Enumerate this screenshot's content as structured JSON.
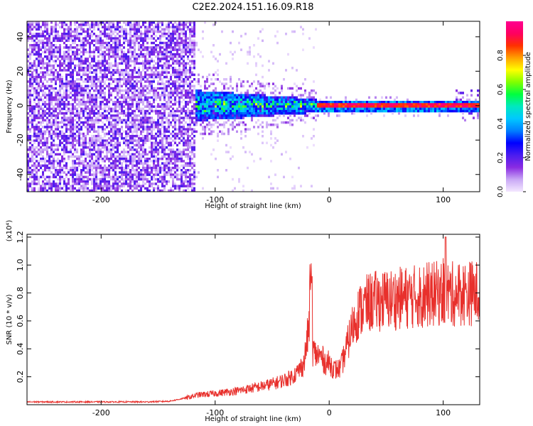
{
  "chart_data": [
    {
      "type": "heatmap",
      "title": "C2E2.2024.151.16.09.R18",
      "xlabel": "Height of straight line (km)",
      "ylabel": "Frequency (Hz)",
      "xlim": [
        -265,
        132
      ],
      "ylim": [
        -50,
        49
      ],
      "xticks": [
        -200,
        -100,
        0,
        100
      ],
      "yticks": [
        -40,
        -20,
        0,
        20,
        40
      ],
      "colorbar": {
        "label": "Normalized spectral amplitude",
        "range": [
          0.0,
          1.0
        ],
        "ticks": [
          0.0,
          0.2,
          0.4,
          0.6,
          0.8
        ],
        "colormap": [
          "#f4e8ff",
          "#c9a8f5",
          "#8a2be2",
          "#4a1cf0",
          "#0000ff",
          "#0080ff",
          "#00c8ff",
          "#00e8c0",
          "#00ff40",
          "#80ff00",
          "#ffff00",
          "#ffa000",
          "#ff3000",
          "#ff0060",
          "#ff0090"
        ]
      },
      "regions": [
        {
          "x_range": [
            -265,
            -118
          ],
          "freq_range": [
            -50,
            49
          ],
          "amplitude": 0.15
        },
        {
          "x_range": [
            -118,
            -10
          ],
          "freq_range": [
            -12,
            12
          ],
          "amplitude": 0.35
        },
        {
          "x_range": [
            -10,
            132
          ],
          "freq_range": [
            -2,
            2
          ],
          "amplitude": 0.9
        }
      ]
    },
    {
      "type": "line",
      "xlabel": "Height of straight line (km)",
      "ylabel": "SNR (10 * v/v)",
      "y_multiplier": "(x10⁴)",
      "xlim": [
        -265,
        132
      ],
      "ylim": [
        0.0,
        1.22
      ],
      "xticks": [
        -200,
        -100,
        0,
        100
      ],
      "yticks": [
        0.2,
        0.4,
        0.6,
        0.8,
        1.0,
        1.2
      ],
      "series": [
        {
          "color": "#e8302c",
          "x": [
            -265,
            -240,
            -200,
            -160,
            -140,
            -125,
            -115,
            -100,
            -80,
            -60,
            -45,
            -35,
            -28,
            -22,
            -18,
            -15,
            -12,
            -8,
            -3,
            0,
            5,
            10,
            15,
            20,
            25,
            30,
            35,
            40,
            50,
            60,
            70,
            80,
            90,
            100,
            110,
            120,
            132
          ],
          "y": [
            0.02,
            0.02,
            0.02,
            0.02,
            0.025,
            0.05,
            0.07,
            0.08,
            0.1,
            0.13,
            0.16,
            0.19,
            0.23,
            0.3,
            0.55,
            0.4,
            0.36,
            0.35,
            0.3,
            0.3,
            0.25,
            0.26,
            0.4,
            0.55,
            0.65,
            0.7,
            0.73,
            0.74,
            0.75,
            0.76,
            0.77,
            0.78,
            0.79,
            0.8,
            0.79,
            0.8,
            0.8
          ]
        }
      ]
    }
  ]
}
